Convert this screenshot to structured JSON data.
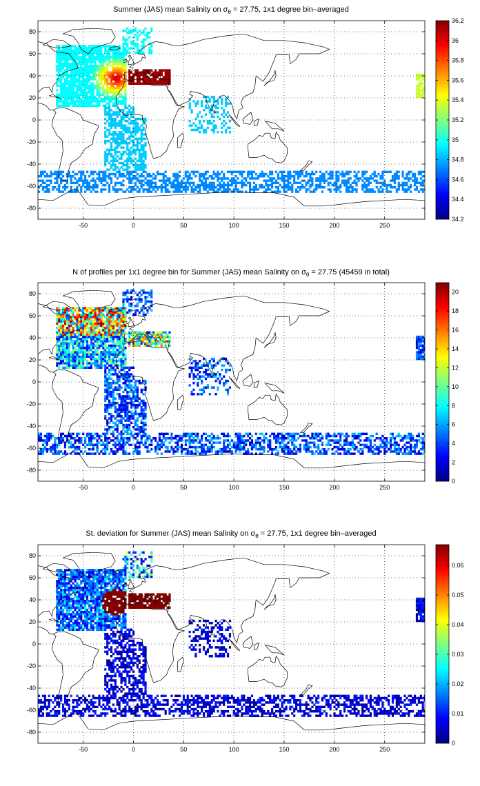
{
  "colors": {
    "colormap": "jet",
    "land_outline": "#000000",
    "grid": "#000000",
    "background": "#ffffff"
  },
  "map": {
    "projection": "plate-carree",
    "lon_range": [
      -95,
      290
    ],
    "lat_range": [
      -90,
      90
    ],
    "xticks": [
      -50,
      0,
      50,
      100,
      150,
      200,
      250
    ],
    "yticks": [
      -80,
      -60,
      -40,
      -20,
      0,
      20,
      40,
      60,
      80
    ],
    "grid": "dotted"
  },
  "panels": [
    {
      "title_pre": "Summer (JAS) mean Salinity on σ",
      "title_sub": "θ",
      "title_post": " = 27.75, 1x1 degree bin–averaged",
      "colorbar": {
        "min": 34.2,
        "max": 36.2,
        "ticks": [
          "34.2",
          "34.4",
          "34.6",
          "34.8",
          "35",
          "35.2",
          "35.4",
          "35.6",
          "35.8",
          "36",
          "36.2"
        ]
      }
    },
    {
      "title_pre": "N of profiles per 1x1 degree bin for Summer (JAS) mean Salinity on σ",
      "title_sub": "θ",
      "title_post": " = 27.75 (45459 in total)",
      "colorbar": {
        "min": 0,
        "max": 21,
        "ticks": [
          "0",
          "2",
          "4",
          "6",
          "8",
          "10",
          "12",
          "14",
          "16",
          "18",
          "20"
        ]
      }
    },
    {
      "title_pre": "St. deviation for Summer (JAS) mean Salinity on σ",
      "title_sub": "θ",
      "title_post": " = 27.75, 1x1 degree bin–averaged",
      "colorbar": {
        "min": 0,
        "max": 0.067,
        "ticks": [
          "0",
          "0.01",
          "0.02",
          "0.03",
          "0.04",
          "0.05",
          "0.06"
        ]
      }
    }
  ]
}
